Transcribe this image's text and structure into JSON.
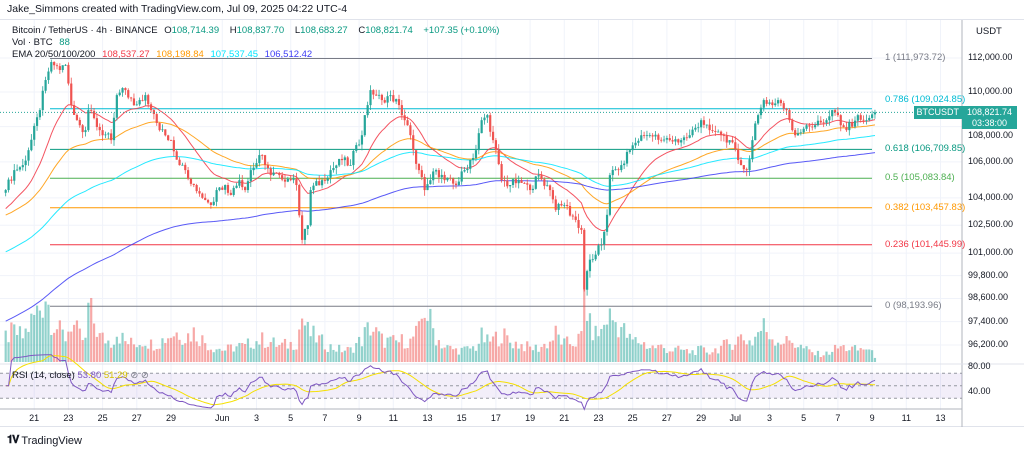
{
  "header": {
    "credit": "Jake_Simmons created with TradingView.com, Jul 09, 2025 04:22 UTC-4"
  },
  "legend": {
    "symbol": "Bitcoin / TetherUS · 4h · BINANCE",
    "o_label": "O",
    "o": "108,714.39",
    "h_label": "H",
    "h": "108,837.70",
    "l_label": "L",
    "l": "108,683.27",
    "c_label": "C",
    "c": "108,821.74",
    "change": "+107.35 (+0.10%)",
    "vol_label": "Vol · BTC",
    "vol": "88",
    "ema_label": "EMA 20/50/100/200",
    "ema_values": [
      "108,537.27",
      "108,198.84",
      "107,537.45",
      "106,512.42"
    ]
  },
  "rsi": {
    "label": "RSI (14, close)",
    "value": "53.80",
    "ma_value": "51.29",
    "ticks": [
      {
        "v": 80,
        "label": "80.00"
      },
      {
        "v": 40,
        "label": "40.00"
      }
    ]
  },
  "price_axis": {
    "currency": "USDT",
    "ticks": [
      {
        "v": 112000,
        "label": "112,000.00"
      },
      {
        "v": 110000,
        "label": "110,000.00"
      },
      {
        "v": 108000,
        "label": "108,000.00"
      },
      {
        "v": 106000,
        "label": "106,000.00"
      },
      {
        "v": 104000,
        "label": "104,000.00"
      },
      {
        "v": 102500,
        "label": "102,500.00"
      },
      {
        "v": 101000,
        "label": "101,000.00"
      },
      {
        "v": 99800,
        "label": "99,800.00"
      },
      {
        "v": 98600,
        "label": "98,600.00"
      },
      {
        "v": 97400,
        "label": "97,400.00"
      },
      {
        "v": 96200,
        "label": "96,200.00"
      }
    ]
  },
  "last_price": {
    "symbol": "BTCUSDT",
    "price": "108,821.74",
    "countdown": "03:38:00",
    "value": 108821.74
  },
  "time_axis": {
    "ticks": [
      {
        "d": "2025-05-21",
        "label": "21"
      },
      {
        "d": "2025-05-23",
        "label": "23"
      },
      {
        "d": "2025-05-25",
        "label": "25"
      },
      {
        "d": "2025-05-27",
        "label": "27"
      },
      {
        "d": "2025-05-29",
        "label": "29"
      },
      {
        "d": "2025-06-01",
        "label": "Jun"
      },
      {
        "d": "2025-06-03",
        "label": "3"
      },
      {
        "d": "2025-06-05",
        "label": "5"
      },
      {
        "d": "2025-06-07",
        "label": "7"
      },
      {
        "d": "2025-06-09",
        "label": "9"
      },
      {
        "d": "2025-06-11",
        "label": "11"
      },
      {
        "d": "2025-06-13",
        "label": "13"
      },
      {
        "d": "2025-06-15",
        "label": "15"
      },
      {
        "d": "2025-06-17",
        "label": "17"
      },
      {
        "d": "2025-06-19",
        "label": "19"
      },
      {
        "d": "2025-06-21",
        "label": "21"
      },
      {
        "d": "2025-06-23",
        "label": "23"
      },
      {
        "d": "2025-06-25",
        "label": "25"
      },
      {
        "d": "2025-06-27",
        "label": "27"
      },
      {
        "d": "2025-06-29",
        "label": "29"
      },
      {
        "d": "2025-07-01",
        "label": "Jul"
      },
      {
        "d": "2025-07-03",
        "label": "3"
      },
      {
        "d": "2025-07-05",
        "label": "5"
      },
      {
        "d": "2025-07-07",
        "label": "7"
      },
      {
        "d": "2025-07-09",
        "label": "9"
      },
      {
        "d": "2025-07-11",
        "label": "11"
      },
      {
        "d": "2025-07-13",
        "label": "13"
      }
    ]
  },
  "fib_levels": [
    {
      "ratio": "1",
      "value": 111973.72,
      "label": "1 (111,973.72)",
      "color": "#787b86"
    },
    {
      "ratio": "0.786",
      "value": 109024.85,
      "label": "0.786 (109,024.85)",
      "color": "#00bcd4"
    },
    {
      "ratio": "0.618",
      "value": 106709.85,
      "label": "0.618 (106,709.85)",
      "color": "#089981"
    },
    {
      "ratio": "0.5",
      "value": 105083.84,
      "label": "0.5 (105,083.84)",
      "color": "#4caf50"
    },
    {
      "ratio": "0.382",
      "value": 103457.83,
      "label": "0.382 (103,457.83)",
      "color": "#ff9800"
    },
    {
      "ratio": "0.236",
      "value": 101445.99,
      "label": "0.236 (101,445.99)",
      "color": "#f23645"
    },
    {
      "ratio": "0",
      "value": 98193.96,
      "label": "0 (98,193.96)",
      "color": "#787b86"
    }
  ],
  "colors": {
    "up": "#26a69a",
    "down": "#ef5350",
    "ema20": "#f23645",
    "ema50": "#ff9800",
    "ema100": "#00e5ff",
    "ema200": "#3d3df5",
    "rsi": "#7e57c2",
    "rsi_ma": "#f5e000"
  },
  "brand": "TradingView",
  "chart_data": {
    "type": "candlestick",
    "interval": "4h",
    "yscale": "log",
    "ylim": [
      95500,
      113000
    ],
    "xlim": [
      "2025-05-19",
      "2025-07-15"
    ],
    "grid": true,
    "ema_periods": [
      20,
      50,
      100,
      200
    ],
    "ema_initial": [
      103300,
      103000,
      101000,
      97350
    ],
    "keypoints_time_close_volume": [
      [
        "2025-05-19 08:00",
        104430,
        25
      ],
      [
        "2025-05-19 20:00",
        105540,
        30
      ],
      [
        "2025-05-20 08:00",
        105820,
        25
      ],
      [
        "2025-05-20 16:00",
        106660,
        35
      ],
      [
        "2025-05-21 08:00",
        108950,
        55
      ],
      [
        "2025-05-21 16:00",
        110700,
        70
      ],
      [
        "2025-05-22 00:00",
        111760,
        45
      ],
      [
        "2025-05-22 12:00",
        111290,
        30
      ],
      [
        "2025-05-22 20:00",
        111590,
        25
      ],
      [
        "2025-05-23 04:00",
        109240,
        40
      ],
      [
        "2025-05-23 16:00",
        108080,
        25
      ],
      [
        "2025-05-24 00:00",
        107800,
        20
      ],
      [
        "2025-05-24 04:00",
        108950,
        55
      ],
      [
        "2025-05-24 20:00",
        107800,
        25
      ],
      [
        "2025-05-25 12:00",
        107230,
        20
      ],
      [
        "2025-05-25 20:00",
        109820,
        30
      ],
      [
        "2025-05-26 08:00",
        110110,
        20
      ],
      [
        "2025-05-26 20:00",
        109240,
        18
      ],
      [
        "2025-05-27 12:00",
        109820,
        22
      ],
      [
        "2025-05-27 20:00",
        108950,
        18
      ],
      [
        "2025-05-28 08:00",
        107800,
        20
      ],
      [
        "2025-05-29 00:00",
        107230,
        28
      ],
      [
        "2025-05-29 12:00",
        105820,
        30
      ],
      [
        "2025-05-29 20:00",
        105540,
        25
      ],
      [
        "2025-05-30 08:00",
        104710,
        30
      ],
      [
        "2025-05-31 00:00",
        103880,
        20
      ],
      [
        "2025-05-31 08:00",
        103610,
        15
      ],
      [
        "2025-05-31 16:00",
        104430,
        14
      ],
      [
        "2025-06-01 04:00",
        104710,
        12
      ],
      [
        "2025-06-01 12:00",
        104160,
        14
      ],
      [
        "2025-06-02 00:00",
        104980,
        16
      ],
      [
        "2025-06-02 08:00",
        104430,
        15
      ],
      [
        "2025-06-02 16:00",
        105540,
        20
      ],
      [
        "2025-06-03 08:00",
        106380,
        22
      ],
      [
        "2025-06-03 20:00",
        105260,
        20
      ],
      [
        "2025-06-04 08:00",
        105260,
        16
      ],
      [
        "2025-06-05 00:00",
        104980,
        18
      ],
      [
        "2025-06-05 08:00",
        104710,
        20
      ],
      [
        "2025-06-05 16:00",
        101710,
        45
      ],
      [
        "2025-06-06 00:00",
        102500,
        30
      ],
      [
        "2025-06-06 04:00",
        104430,
        28
      ],
      [
        "2025-06-06 20:00",
        104980,
        20
      ],
      [
        "2025-06-07 08:00",
        105540,
        15
      ],
      [
        "2025-06-08 00:00",
        106100,
        12
      ],
      [
        "2025-06-08 12:00",
        105820,
        12
      ],
      [
        "2025-06-08 20:00",
        106950,
        18
      ],
      [
        "2025-06-09 04:00",
        107510,
        22
      ],
      [
        "2025-06-09 08:00",
        108660,
        28
      ],
      [
        "2025-06-09 16:00",
        110110,
        35
      ],
      [
        "2025-06-10 08:00",
        109530,
        22
      ],
      [
        "2025-06-10 20:00",
        109820,
        20
      ],
      [
        "2025-06-11 08:00",
        109240,
        20
      ],
      [
        "2025-06-11 16:00",
        108370,
        22
      ],
      [
        "2025-06-12 00:00",
        107510,
        20
      ],
      [
        "2025-06-12 04:00",
        106660,
        25
      ],
      [
        "2025-06-12 12:00",
        105540,
        30
      ],
      [
        "2025-06-12 20:00",
        104430,
        55
      ],
      [
        "2025-06-13 12:00",
        105540,
        25
      ],
      [
        "2025-06-14 00:00",
        104980,
        15
      ],
      [
        "2025-06-14 16:00",
        104710,
        12
      ],
      [
        "2025-06-15 04:00",
        105540,
        12
      ],
      [
        "2025-06-15 20:00",
        106660,
        15
      ],
      [
        "2025-06-16 04:00",
        108370,
        25
      ],
      [
        "2025-06-16 12:00",
        108660,
        20
      ],
      [
        "2025-06-16 20:00",
        107230,
        22
      ],
      [
        "2025-06-17 08:00",
        104980,
        28
      ],
      [
        "2025-06-17 20:00",
        104710,
        20
      ],
      [
        "2025-06-18 08:00",
        104980,
        18
      ],
      [
        "2025-06-19 00:00",
        104430,
        14
      ],
      [
        "2025-06-19 12:00",
        105260,
        14
      ],
      [
        "2025-06-20 04:00",
        104430,
        20
      ],
      [
        "2025-06-20 12:00",
        103340,
        28
      ],
      [
        "2025-06-21 00:00",
        103610,
        18
      ],
      [
        "2025-06-21 16:00",
        102790,
        20
      ],
      [
        "2025-06-22 00:00",
        102250,
        25
      ],
      [
        "2025-06-22 04:00",
        99060,
        70
      ],
      [
        "2025-06-22 12:00",
        100650,
        35
      ],
      [
        "2025-06-22 20:00",
        100920,
        28
      ],
      [
        "2025-06-23 04:00",
        101450,
        30
      ],
      [
        "2025-06-23 12:00",
        103070,
        45
      ],
      [
        "2025-06-23 16:00",
        105260,
        45
      ],
      [
        "2025-06-24 08:00",
        105820,
        35
      ],
      [
        "2025-06-24 20:00",
        106660,
        22
      ],
      [
        "2025-06-25 12:00",
        107510,
        20
      ],
      [
        "2025-06-26 00:00",
        107510,
        15
      ],
      [
        "2025-06-26 16:00",
        107230,
        15
      ],
      [
        "2025-06-27 04:00",
        107230,
        12
      ],
      [
        "2025-06-27 20:00",
        107230,
        12
      ],
      [
        "2025-06-28 08:00",
        107510,
        10
      ],
      [
        "2025-06-29 00:00",
        108370,
        12
      ],
      [
        "2025-06-29 12:00",
        107800,
        10
      ],
      [
        "2025-06-30 04:00",
        107510,
        15
      ],
      [
        "2025-06-30 16:00",
        107230,
        18
      ],
      [
        "2025-07-01 08:00",
        105820,
        25
      ],
      [
        "2025-07-01 16:00",
        105540,
        22
      ],
      [
        "2025-07-02 00:00",
        107230,
        20
      ],
      [
        "2025-07-02 08:00",
        108660,
        30
      ],
      [
        "2025-07-02 16:00",
        109530,
        35
      ],
      [
        "2025-07-03 04:00",
        109240,
        25
      ],
      [
        "2025-07-03 12:00",
        109530,
        22
      ],
      [
        "2025-07-04 00:00",
        108950,
        20
      ],
      [
        "2025-07-04 08:00",
        107800,
        22
      ],
      [
        "2025-07-04 12:00",
        107510,
        18
      ],
      [
        "2025-07-05 04:00",
        108080,
        12
      ],
      [
        "2025-07-05 16:00",
        108080,
        8
      ],
      [
        "2025-07-06 08:00",
        108370,
        8
      ],
      [
        "2025-07-06 16:00",
        108950,
        12
      ],
      [
        "2025-07-07 00:00",
        108660,
        14
      ],
      [
        "2025-07-07 04:00",
        108080,
        15
      ],
      [
        "2025-07-07 12:00",
        107800,
        14
      ],
      [
        "2025-07-08 04:00",
        108660,
        12
      ],
      [
        "2025-07-08 16:00",
        108370,
        14
      ],
      [
        "2025-07-09 04:00",
        108821.74,
        6
      ]
    ]
  }
}
